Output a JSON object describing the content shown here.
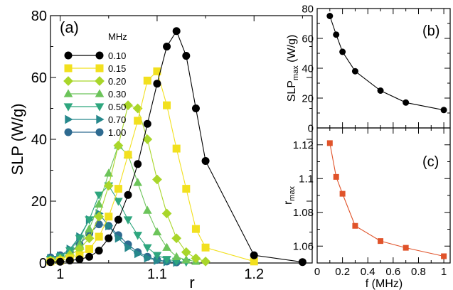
{
  "chart_data": [
    {
      "panel": "a",
      "type": "line",
      "panel_label": "(a)",
      "xlabel": "r",
      "ylabel": "SLP (W/g)",
      "xlim": [
        0.99,
        1.26
      ],
      "ylim": [
        0,
        80
      ],
      "xticks": [
        "1",
        "1.1",
        "1.2"
      ],
      "yticks": [
        "0",
        "20",
        "40",
        "60",
        "80"
      ],
      "legend_title": "MHz",
      "legend_position": "upper-left",
      "series": [
        {
          "name": "0.10",
          "color": "#000000",
          "marker": "circle",
          "x": [
            0.99,
            1.0,
            1.01,
            1.02,
            1.03,
            1.04,
            1.05,
            1.06,
            1.07,
            1.08,
            1.09,
            1.1,
            1.11,
            1.12,
            1.13,
            1.14,
            1.15,
            1.2,
            1.25
          ],
          "y": [
            0.3,
            0.4,
            0.8,
            1.2,
            2.0,
            4.0,
            8.0,
            14.0,
            22.0,
            32.0,
            45.0,
            58.0,
            70.0,
            75.0,
            67.0,
            50.0,
            33.0,
            2.5,
            0.3
          ]
        },
        {
          "name": "0.15",
          "color": "#f2e01e",
          "marker": "square",
          "x": [
            0.99,
            1.0,
            1.01,
            1.02,
            1.03,
            1.04,
            1.05,
            1.06,
            1.07,
            1.08,
            1.09,
            1.1,
            1.11,
            1.12,
            1.13,
            1.14,
            1.15,
            1.2
          ],
          "y": [
            0.5,
            0.8,
            1.5,
            2.5,
            4.5,
            8.5,
            15.0,
            24.0,
            35.0,
            46.0,
            59.0,
            62.0,
            51.0,
            37.0,
            24.0,
            11.0,
            5.0,
            0.5
          ]
        },
        {
          "name": "0.20",
          "color": "#a9d62a",
          "marker": "diamond",
          "x": [
            0.99,
            1.0,
            1.01,
            1.02,
            1.03,
            1.04,
            1.05,
            1.06,
            1.07,
            1.08,
            1.09,
            1.1,
            1.11,
            1.12,
            1.13,
            1.14,
            1.15
          ],
          "y": [
            0.8,
            1.2,
            2.5,
            4.5,
            8.0,
            15.0,
            25.0,
            38.0,
            51.0,
            50.0,
            40.0,
            27.0,
            16.0,
            8.0,
            3.5,
            1.5,
            0.5
          ]
        },
        {
          "name": "0.30",
          "color": "#6cc45a",
          "marker": "triangle-up",
          "x": [
            0.99,
            1.0,
            1.01,
            1.02,
            1.03,
            1.04,
            1.05,
            1.06,
            1.07,
            1.08,
            1.09,
            1.1,
            1.11,
            1.12,
            1.13,
            1.14
          ],
          "y": [
            1.0,
            1.5,
            3.0,
            6.0,
            11.0,
            19.0,
            29.0,
            38.0,
            35.0,
            26.0,
            17.0,
            10.0,
            5.0,
            2.0,
            1.0,
            0.5
          ]
        },
        {
          "name": "0.50",
          "color": "#2ea67e",
          "marker": "triangle-down",
          "x": [
            0.99,
            1.0,
            1.01,
            1.02,
            1.03,
            1.04,
            1.05,
            1.06,
            1.07,
            1.08,
            1.09,
            1.1,
            1.11,
            1.12,
            1.13
          ],
          "y": [
            1.2,
            2.0,
            4.0,
            8.0,
            14.0,
            22.0,
            25.0,
            20.0,
            14.0,
            9.0,
            5.0,
            2.5,
            1.2,
            0.6,
            0.3
          ]
        },
        {
          "name": "0.70",
          "color": "#26888c",
          "marker": "triangle-right",
          "x": [
            0.99,
            1.0,
            1.01,
            1.02,
            1.03,
            1.04,
            1.05,
            1.06,
            1.07,
            1.08,
            1.09,
            1.1,
            1.11,
            1.12
          ],
          "y": [
            1.5,
            2.3,
            4.5,
            8.5,
            14.0,
            16.0,
            12.0,
            8.0,
            5.0,
            3.0,
            1.6,
            0.8,
            0.4,
            0.2
          ]
        },
        {
          "name": "1.00",
          "color": "#2e6a90",
          "marker": "circle",
          "x": [
            0.99,
            1.0,
            1.01,
            1.02,
            1.03,
            1.04,
            1.05,
            1.06,
            1.07,
            1.08,
            1.09,
            1.1,
            1.11,
            1.12
          ],
          "y": [
            1.8,
            2.5,
            3.5,
            6.0,
            9.5,
            12.5,
            12.0,
            9.0,
            6.0,
            3.5,
            2.0,
            1.0,
            0.5,
            0.2
          ]
        }
      ]
    },
    {
      "panel": "b",
      "type": "line",
      "panel_label": "(b)",
      "xlabel": "",
      "ylabel": "SLP_max (W/g)",
      "ylabel_main": "SLP",
      "ylabel_sub": "max",
      "ylabel_unit": "(W/g)",
      "xlim": [
        0,
        1.05
      ],
      "ylim": [
        0,
        80
      ],
      "yticks": [
        "0",
        "20",
        "40",
        "60",
        "80"
      ],
      "series": [
        {
          "color": "#000000",
          "marker": "circle",
          "x": [
            0.1,
            0.15,
            0.2,
            0.3,
            0.5,
            0.7,
            1.0
          ],
          "y": [
            75,
            62.5,
            51,
            38,
            25,
            17,
            12
          ]
        }
      ]
    },
    {
      "panel": "c",
      "type": "line",
      "panel_label": "(c)",
      "xlabel": "f (MHz)",
      "ylabel": "r_max",
      "ylabel_main": "r",
      "ylabel_sub": "max",
      "xlim": [
        0,
        1.05
      ],
      "ylim": [
        1.05,
        1.13
      ],
      "xticks": [
        "0",
        "0.2",
        "0.4",
        "0.6",
        "0.8",
        "1"
      ],
      "yticks": [
        "1.06",
        "1.08",
        "1.1",
        "1.12"
      ],
      "series": [
        {
          "color": "#e0532a",
          "marker": "square",
          "x": [
            0.1,
            0.15,
            0.2,
            0.3,
            0.5,
            0.7,
            1.0
          ],
          "y": [
            1.121,
            1.101,
            1.091,
            1.072,
            1.063,
            1.059,
            1.054
          ]
        }
      ]
    }
  ]
}
